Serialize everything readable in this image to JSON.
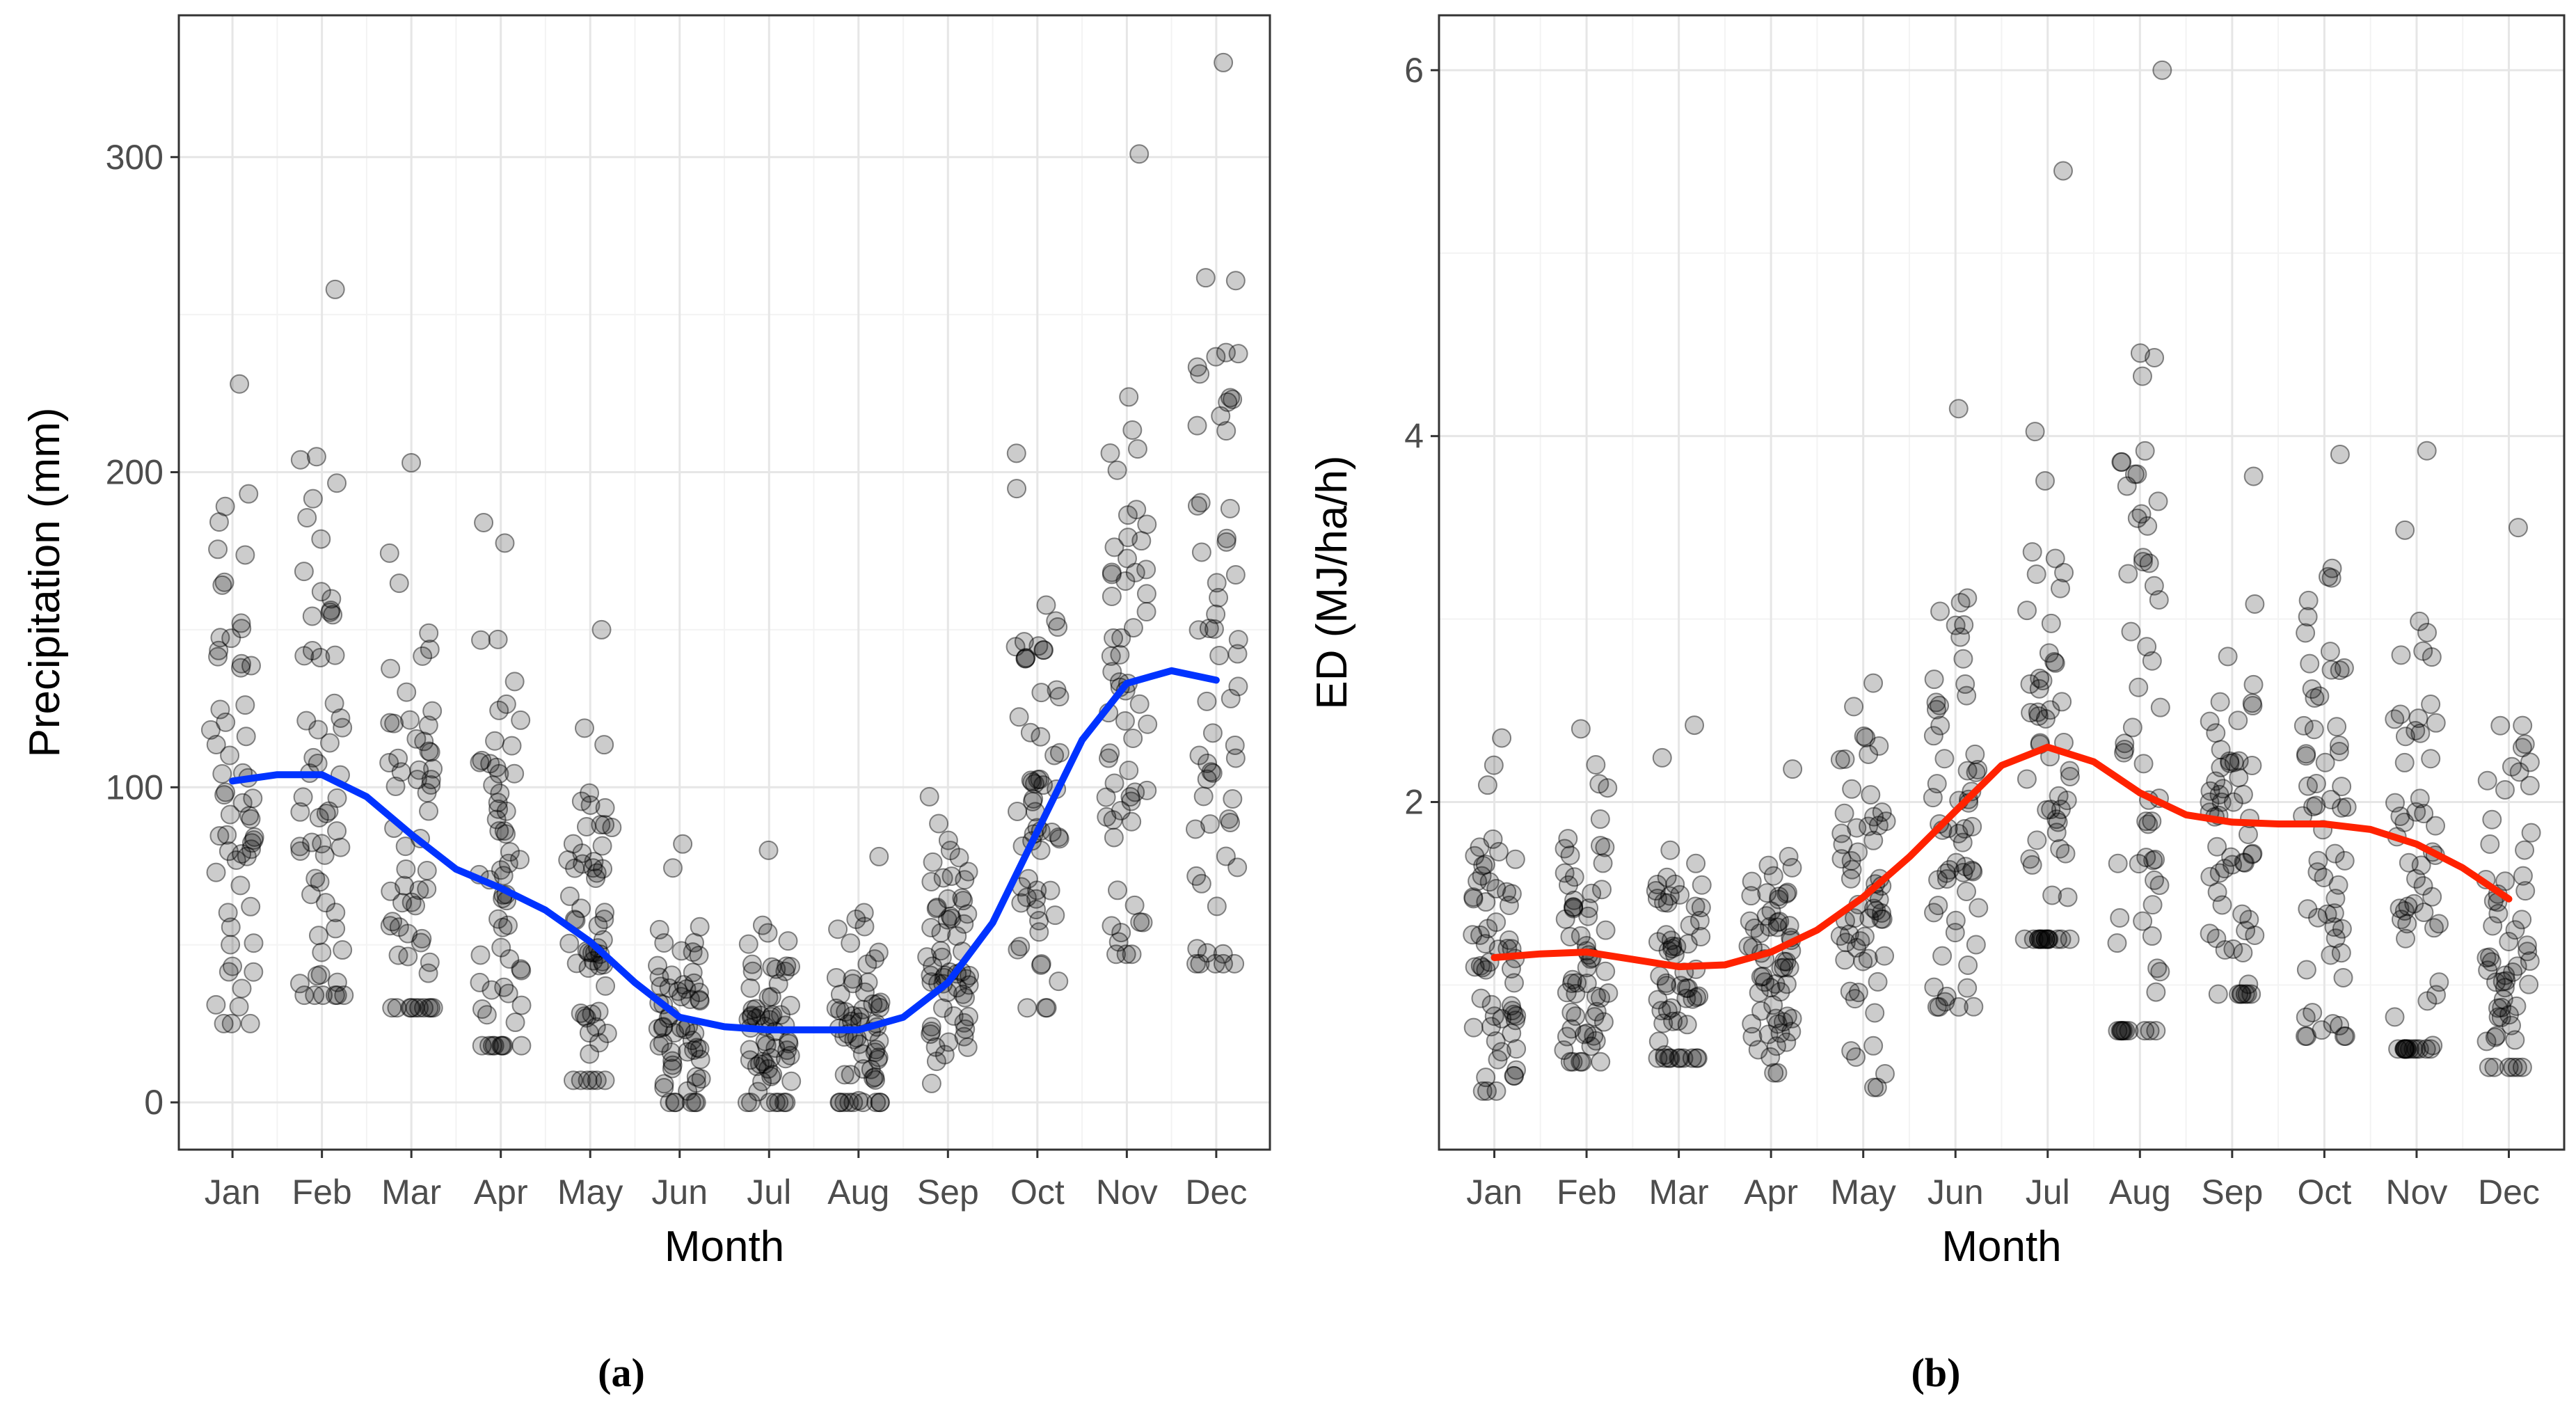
{
  "colors": {
    "points": "#000000",
    "panel_a_line": "#0033ff",
    "panel_b_line": "#ff2200",
    "grid_major": "#e6e6e6",
    "grid_minor": "#f3f3f3",
    "axis_border": "#333333"
  },
  "chart_data": [
    {
      "type": "scatter",
      "panel_label": "(a)",
      "title": "",
      "xlabel": "Month",
      "ylabel": "Precipitation (mm)",
      "categories": [
        "Jan",
        "Feb",
        "Mar",
        "Apr",
        "May",
        "Jun",
        "Jul",
        "Aug",
        "Sep",
        "Oct",
        "Nov",
        "Dec"
      ],
      "ylim": [
        -15,
        345
      ],
      "yticks": [
        0,
        100,
        200,
        300
      ],
      "ytick_labels": [
        "0",
        "100",
        "200",
        "300"
      ],
      "grid": true,
      "points_per_month": 60,
      "point_ranges": [
        {
          "month": "Jan",
          "min": 25,
          "max": 228,
          "center": 100
        },
        {
          "month": "Feb",
          "min": 34,
          "max": 258,
          "center": 105
        },
        {
          "month": "Mar",
          "min": 30,
          "max": 203,
          "center": 85
        },
        {
          "month": "Apr",
          "min": 18,
          "max": 184,
          "center": 70
        },
        {
          "month": "May",
          "min": 7,
          "max": 150,
          "center": 55
        },
        {
          "month": "Jun",
          "min": 0,
          "max": 82,
          "center": 28
        },
        {
          "month": "Jul",
          "min": 0,
          "max": 80,
          "center": 24
        },
        {
          "month": "Aug",
          "min": 0,
          "max": 78,
          "center": 22
        },
        {
          "month": "Sep",
          "min": 6,
          "max": 97,
          "center": 40
        },
        {
          "month": "Oct",
          "min": 30,
          "max": 206,
          "center": 90
        },
        {
          "month": "Nov",
          "min": 47,
          "max": 301,
          "center": 135
        },
        {
          "month": "Dec",
          "min": 44,
          "max": 330,
          "center": 135
        }
      ],
      "smooth_line": {
        "x": [
          1,
          1.5,
          2,
          2.5,
          3,
          3.5,
          4,
          4.5,
          5,
          5.5,
          6,
          6.5,
          7,
          7.5,
          8,
          8.5,
          9,
          9.5,
          10,
          10.5,
          11,
          11.5,
          12
        ],
        "y": [
          102,
          104,
          104,
          97,
          85,
          74,
          68,
          61,
          51,
          38,
          27,
          24,
          23,
          23,
          23,
          27,
          38,
          57,
          86,
          115,
          133,
          137,
          134
        ]
      }
    },
    {
      "type": "scatter",
      "panel_label": "(b)",
      "title": "",
      "xlabel": "Month",
      "ylabel": "ED (MJ/ha/h)",
      "categories": [
        "Jan",
        "Feb",
        "Mar",
        "Apr",
        "May",
        "Jun",
        "Jul",
        "Aug",
        "Sep",
        "Oct",
        "Nov",
        "Dec"
      ],
      "ylim": [
        0.1,
        6.3
      ],
      "yticks": [
        2,
        4,
        6
      ],
      "ytick_labels": [
        "2",
        "4",
        "6"
      ],
      "grid": true,
      "points_per_month": 60,
      "point_ranges": [
        {
          "month": "Jan",
          "min": 0.42,
          "max": 2.35,
          "center": 1.15
        },
        {
          "month": "Feb",
          "min": 0.58,
          "max": 2.4,
          "center": 1.2
        },
        {
          "month": "Mar",
          "min": 0.6,
          "max": 2.42,
          "center": 1.12
        },
        {
          "month": "Apr",
          "min": 0.52,
          "max": 2.18,
          "center": 1.15
        },
        {
          "month": "May",
          "min": 0.44,
          "max": 2.65,
          "center": 1.5
        },
        {
          "month": "Jun",
          "min": 0.88,
          "max": 4.15,
          "center": 1.9
        },
        {
          "month": "Jul",
          "min": 1.25,
          "max": 5.45,
          "center": 2.2
        },
        {
          "month": "Aug",
          "min": 0.75,
          "max": 6.0,
          "center": 2.1
        },
        {
          "month": "Sep",
          "min": 0.95,
          "max": 3.78,
          "center": 1.9
        },
        {
          "month": "Oct",
          "min": 0.72,
          "max": 3.9,
          "center": 1.85
        },
        {
          "month": "Nov",
          "min": 0.65,
          "max": 3.92,
          "center": 1.75
        },
        {
          "month": "Dec",
          "min": 0.55,
          "max": 3.5,
          "center": 1.45
        }
      ],
      "smooth_line": {
        "x": [
          1,
          1.5,
          2,
          2.5,
          3,
          3.5,
          4,
          4.5,
          5,
          5.5,
          6,
          6.5,
          7,
          7.5,
          8,
          8.5,
          9,
          9.5,
          10,
          10.5,
          11,
          11.5,
          12
        ],
        "y": [
          1.15,
          1.17,
          1.18,
          1.14,
          1.1,
          1.11,
          1.18,
          1.3,
          1.48,
          1.7,
          1.95,
          2.2,
          2.3,
          2.22,
          2.05,
          1.93,
          1.89,
          1.88,
          1.88,
          1.85,
          1.77,
          1.64,
          1.47
        ]
      }
    }
  ]
}
